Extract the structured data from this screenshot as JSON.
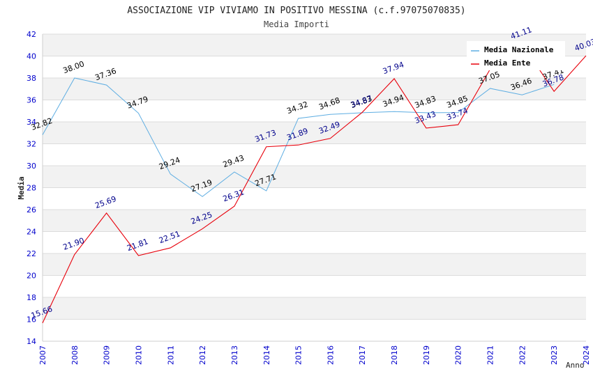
{
  "chart_data": {
    "type": "line",
    "title": "ASSOCIAZIONE VIP VIVIAMO IN POSITIVO MESSINA (c.f.97075070835)",
    "subtitle": "Media Importi",
    "xlabel": "Anno",
    "ylabel": "Media",
    "ylim": [
      14,
      42
    ],
    "ytick_step": 2,
    "categories": [
      "2007",
      "2008",
      "2009",
      "2010",
      "2011",
      "2012",
      "2013",
      "2014",
      "2015",
      "2016",
      "2017",
      "2018",
      "2019",
      "2020",
      "2021",
      "2022",
      "2023",
      "2024"
    ],
    "series": [
      {
        "name": "Media Nazionale",
        "color": "#5dade2",
        "label_color": "#000000",
        "values": [
          32.82,
          38.0,
          37.36,
          34.79,
          29.24,
          27.19,
          29.43,
          27.71,
          34.32,
          34.68,
          34.83,
          34.94,
          34.83,
          34.85,
          37.05,
          36.46,
          37.41,
          null
        ],
        "labels": [
          "32.82",
          "38.00",
          "37.36",
          "34.79",
          "29.24",
          "27.19",
          "29.43",
          "27.71",
          "34.32",
          "34.68",
          "34.83",
          "34.94",
          "34.83",
          "34.85",
          "37.05",
          "36.46",
          "37.41",
          ""
        ]
      },
      {
        "name": "Media Ente",
        "color": "#e8000b",
        "label_color": "#00008b",
        "values": [
          15.66,
          21.9,
          25.69,
          21.81,
          22.51,
          24.25,
          26.31,
          31.73,
          31.89,
          32.49,
          34.87,
          37.94,
          33.43,
          33.74,
          38.8,
          41.11,
          36.78,
          40.03
        ],
        "labels": [
          "15.66",
          "21.90",
          "25.69",
          "21.81",
          "22.51",
          "24.25",
          "26.31",
          "31.73",
          "31.89",
          "32.49",
          "34.87",
          "37.94",
          "33.43",
          "33.74",
          "",
          "41.11",
          "36.78",
          "40.03"
        ]
      }
    ],
    "legend_position": "top-right"
  }
}
